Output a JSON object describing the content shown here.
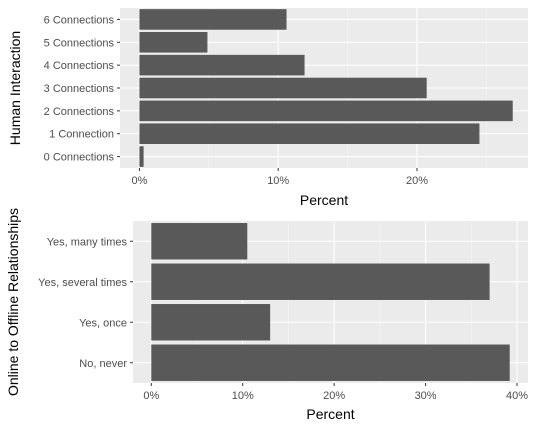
{
  "colors": {
    "panel_bg": "#ebebeb",
    "grid_major": "#ffffff",
    "grid_minor": "#f5f5f5",
    "bar": "#595959"
  },
  "chart_data": [
    {
      "type": "bar",
      "orientation": "horizontal",
      "ylabel": "Human Interaction",
      "xlabel": "Percent",
      "xlim": [
        -1.4,
        28
      ],
      "xticks": [
        0,
        10,
        20
      ],
      "xtick_labels": [
        "0%",
        "10%",
        "20%"
      ],
      "grid": true,
      "categories": [
        "0 Connections",
        "1 Connection",
        "2 Connections",
        "3 Connections",
        "4 Connections",
        "5 Connections",
        "6 Connections"
      ],
      "values": [
        0.3,
        24.5,
        26.9,
        20.7,
        11.9,
        4.9,
        10.6
      ]
    },
    {
      "type": "bar",
      "orientation": "horizontal",
      "ylabel": "Online to Offline Relationships",
      "xlabel": "Percent",
      "xlim": [
        -2,
        41.2
      ],
      "xticks": [
        0,
        10,
        20,
        30,
        40
      ],
      "xtick_labels": [
        "0%",
        "10%",
        "20%",
        "30%",
        "40%"
      ],
      "grid": true,
      "categories": [
        "No, never",
        "Yes, once",
        "Yes, several times",
        "Yes, many times"
      ],
      "values": [
        39.2,
        13.0,
        37.0,
        10.5
      ]
    }
  ]
}
